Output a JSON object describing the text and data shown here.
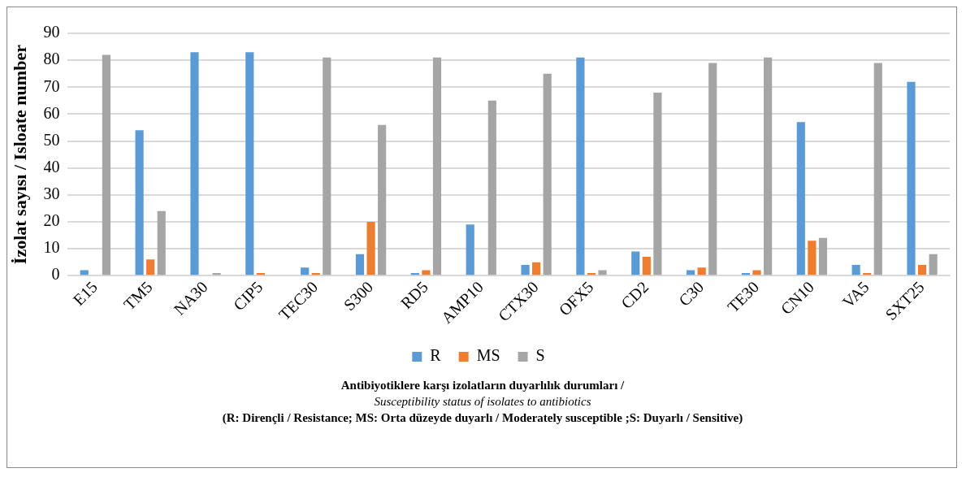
{
  "chart_data": {
    "type": "bar",
    "ylabel": "İzolat sayısı / Isloate number",
    "categories": [
      "E15",
      "TM5",
      "NA30",
      "CIP5",
      "TEC30",
      "S300",
      "RD5",
      "AMP10",
      "CTX30",
      "OFX5",
      "CD2",
      "C30",
      "TE30",
      "CN10",
      "VA5",
      "SXT25"
    ],
    "series": [
      {
        "name": "R",
        "color": "#5b9bd5",
        "values": [
          2,
          54,
          83,
          83,
          3,
          8,
          1,
          19,
          4,
          81,
          9,
          2,
          1,
          57,
          4,
          72
        ]
      },
      {
        "name": "MS",
        "color": "#ed7d31",
        "values": [
          0,
          6,
          0,
          1,
          1,
          20,
          2,
          0,
          5,
          1,
          7,
          3,
          2,
          13,
          1,
          4
        ]
      },
      {
        "name": "S",
        "color": "#a5a5a5",
        "values": [
          82,
          24,
          1,
          0,
          81,
          56,
          81,
          65,
          75,
          2,
          68,
          79,
          81,
          14,
          79,
          8
        ]
      }
    ],
    "ylim": [
      0,
      90
    ],
    "yticks": [
      0,
      10,
      20,
      30,
      40,
      50,
      60,
      70,
      80,
      90
    ],
    "grid": "y",
    "legend": "bottom",
    "annotations": [
      "Antibiyotiklere karşı izolatların duyarlılık durumları /",
      "Susceptibility status of isolates to antibiotics",
      "(R: Dirençli / Resistance; MS: Orta düzeyde duyarlı / Moderately susceptible ;S: Duyarlı / Sensitive)"
    ]
  }
}
